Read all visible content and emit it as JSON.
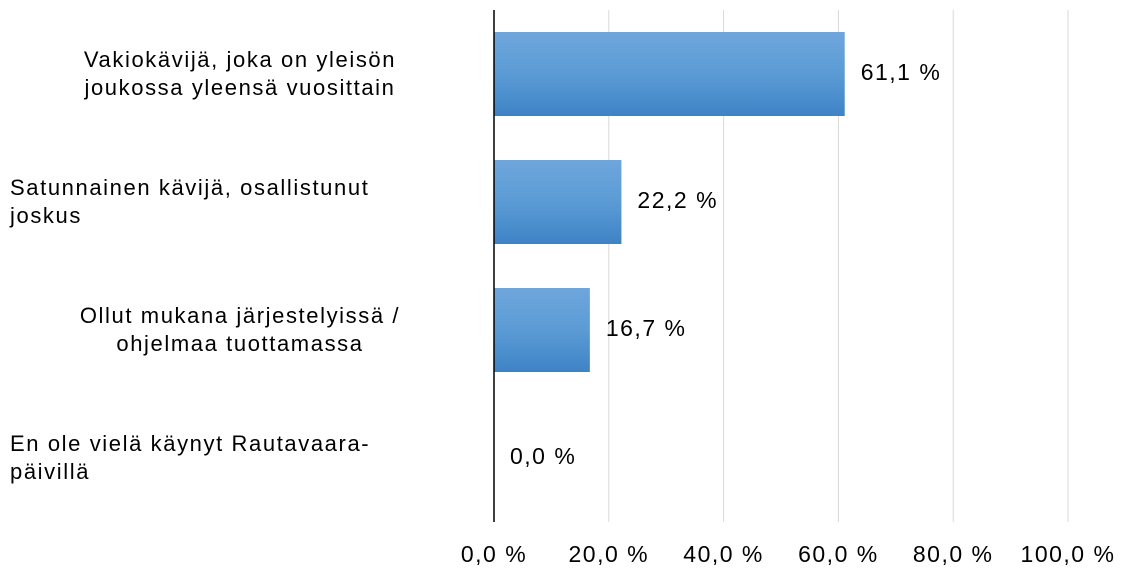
{
  "chart_data": {
    "type": "bar",
    "orientation": "horizontal",
    "categories": [
      "Vakiokävijä, joka on yleisön\njoukossa yleensä vuosittain",
      "Satunnainen kävijä, osallistunut\njoskus",
      "Ollut mukana järjestelyissä /\nohjelmaa tuottamassa",
      "En ole vielä käynyt Rautavaara-\npäivillä"
    ],
    "values": [
      61.1,
      22.2,
      16.7,
      0.0
    ],
    "value_labels": [
      "61,1 %",
      "22,2 %",
      "16,7 %",
      "0,0 %"
    ],
    "color": "#5b9bd5",
    "xlim": [
      0,
      100
    ],
    "xticks": [
      {
        "value": 0,
        "label": "0,0 %"
      },
      {
        "value": 20,
        "label": "20,0 %"
      },
      {
        "value": 40,
        "label": "40,0 %"
      },
      {
        "value": 60,
        "label": "60,0 %"
      },
      {
        "value": 80,
        "label": "80,0 %"
      },
      {
        "value": 100,
        "label": "100,0 %"
      }
    ],
    "grid": true
  }
}
